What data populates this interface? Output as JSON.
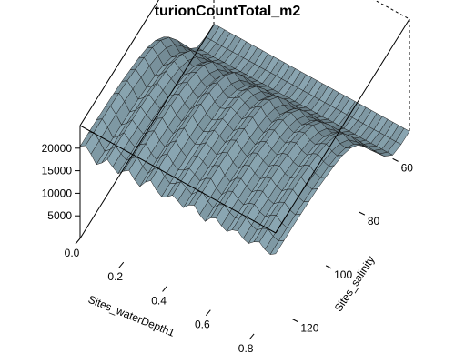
{
  "chart_data": {
    "type": "surface3d",
    "title": "turionCountTotal_m2",
    "xlabel": "Sites_waterDepth1",
    "ylabel": "Sites_salinity",
    "zlabel": "",
    "x_ticks": [
      "0.0",
      "0.2",
      "0.4",
      "0.6",
      "0.8"
    ],
    "y_ticks": [
      "60",
      "80",
      "100",
      "120"
    ],
    "z_ticks": [
      "5000",
      "10000",
      "15000",
      "20000"
    ],
    "xlim": [
      0.0,
      0.9
    ],
    "ylim": [
      50,
      130
    ],
    "zlim": [
      0,
      25000
    ],
    "x_grid": [
      0.0,
      0.025,
      0.05,
      0.075,
      0.1,
      0.125,
      0.15,
      0.175,
      0.2,
      0.225,
      0.25,
      0.275,
      0.3,
      0.325,
      0.35,
      0.375,
      0.4,
      0.425,
      0.45,
      0.475,
      0.5,
      0.525,
      0.55,
      0.575,
      0.6,
      0.625,
      0.65,
      0.675,
      0.7,
      0.725,
      0.75,
      0.775,
      0.8,
      0.825,
      0.85,
      0.875,
      0.9
    ],
    "y_grid": [
      50,
      55,
      60,
      65,
      70,
      75,
      80,
      85,
      90,
      95,
      100,
      105,
      110,
      115,
      120,
      125,
      130
    ],
    "profile_by_salinity": [
      150,
      200,
      800,
      3500,
      7500,
      11500,
      15000,
      17200,
      18500,
      19200,
      19600,
      20000,
      20200,
      20300,
      20400,
      20400,
      20400
    ],
    "depth_modulation": [
      1.0,
      1.04,
      0.98,
      0.9,
      0.95,
      1.02,
      0.97,
      0.93,
      0.99,
      1.03,
      0.96,
      0.92,
      1.0,
      1.05,
      0.98,
      0.94,
      0.97,
      1.02,
      0.99,
      0.95,
      1.01,
      1.04,
      0.97,
      0.93,
      1.0,
      1.03,
      0.98,
      0.95,
      1.0,
      1.02,
      0.97,
      0.95,
      1.0,
      1.03,
      0.98,
      0.96,
      1.0
    ],
    "surface_color": "#8aa6b2",
    "shade_dark": 0.45,
    "box_color": "#000000"
  }
}
